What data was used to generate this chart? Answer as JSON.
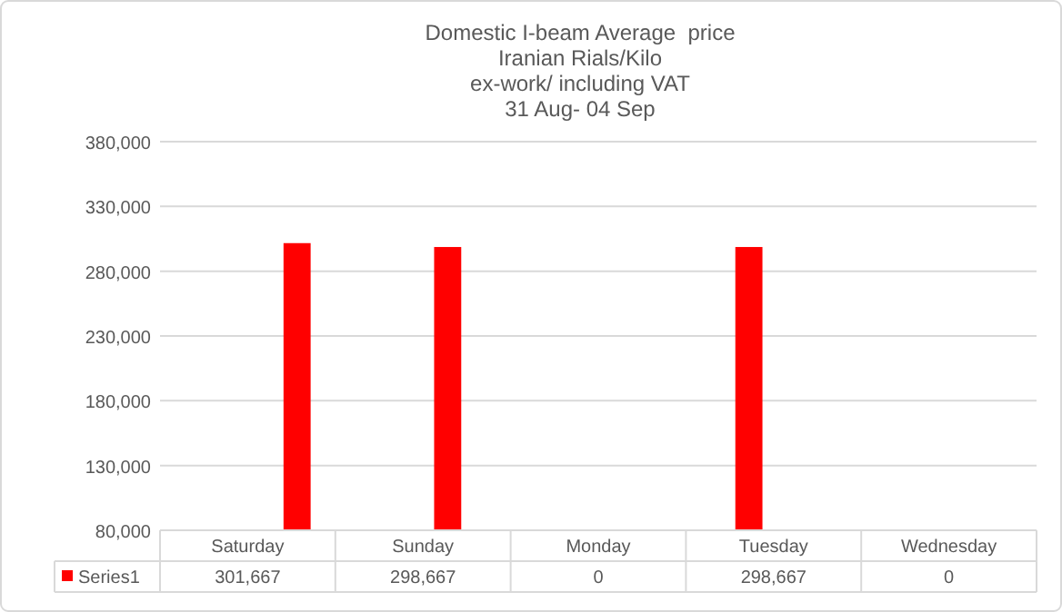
{
  "chart_data": {
    "type": "bar",
    "title": "Domestic I-beam Average  price\nIranian Rials/Kilo\nex-work/ including VAT\n31 Aug- 04 Sep",
    "categories": [
      "Saturday",
      "Sunday",
      "Monday",
      "Tuesday",
      "Wednesday"
    ],
    "series": [
      {
        "name": "Series1",
        "color": "#ff0000",
        "values": [
          301667,
          298667,
          null,
          298667,
          null
        ],
        "value_labels": [
          "301,667",
          "298,667",
          "0",
          "298,667",
          "0"
        ]
      }
    ],
    "ylim": [
      80000,
      380000
    ],
    "yticks": [
      {
        "value": 80000,
        "label": "80,000"
      },
      {
        "value": 130000,
        "label": "130,000"
      },
      {
        "value": 180000,
        "label": "180,000"
      },
      {
        "value": 230000,
        "label": "230,000"
      },
      {
        "value": 280000,
        "label": "280,000"
      },
      {
        "value": 330000,
        "label": "330,000"
      },
      {
        "value": 380000,
        "label": "380,000"
      }
    ],
    "grid": "y",
    "legend": "bottom"
  }
}
